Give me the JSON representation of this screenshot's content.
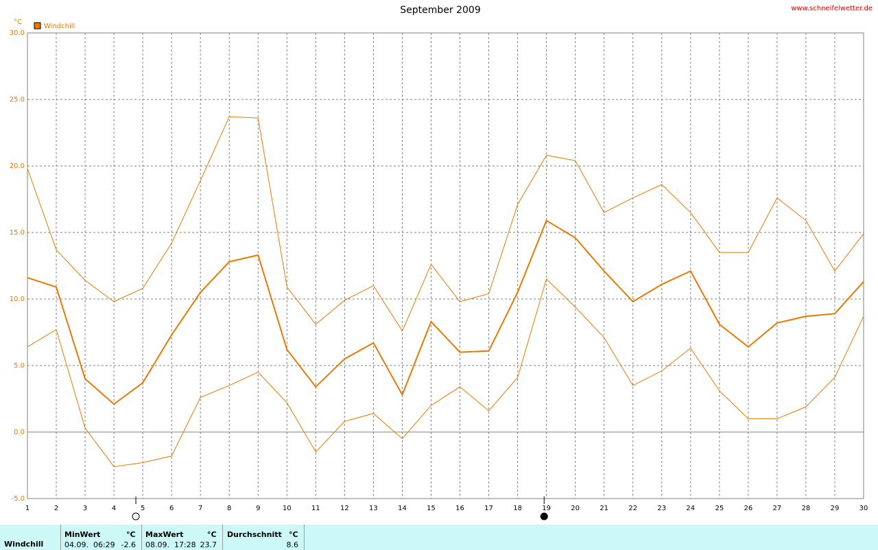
{
  "chart_data": {
    "type": "line",
    "title": "September 2009",
    "source": "www.schneifelwetter.de",
    "unit": "°C",
    "legend": "Windchill",
    "legend_color": "#e87800",
    "x": [
      1,
      2,
      3,
      4,
      5,
      6,
      7,
      8,
      9,
      10,
      11,
      12,
      13,
      14,
      15,
      16,
      17,
      18,
      19,
      20,
      21,
      22,
      23,
      24,
      25,
      26,
      27,
      28,
      29,
      30
    ],
    "xlim": [
      1,
      30
    ],
    "xticks": [
      1,
      2,
      3,
      4,
      5,
      6,
      7,
      8,
      9,
      10,
      11,
      12,
      13,
      14,
      15,
      16,
      17,
      18,
      19,
      20,
      21,
      22,
      23,
      24,
      25,
      26,
      27,
      28,
      29,
      30
    ],
    "ylim": [
      -5,
      30
    ],
    "yticks": [
      {
        "value": -5,
        "label": "-5.0"
      },
      {
        "value": 0,
        "label": "0.0"
      },
      {
        "value": 5,
        "label": "5.0"
      },
      {
        "value": 10,
        "label": "10.0"
      },
      {
        "value": 15,
        "label": "15.0"
      },
      {
        "value": 20,
        "label": "20.0"
      },
      {
        "value": 25,
        "label": "25.0"
      },
      {
        "value": 30,
        "label": "30.0"
      }
    ],
    "grid": true,
    "series": [
      {
        "name": "Windchill",
        "color": "#e87800",
        "values": [
          11.6,
          10.9,
          4.0,
          2.1,
          3.7,
          7.3,
          10.5,
          12.8,
          13.3,
          6.2,
          3.4,
          5.5,
          6.7,
          2.8,
          8.3,
          6.0,
          6.1,
          10.5,
          15.9,
          14.6,
          12.1,
          9.8,
          11.1,
          12.1,
          8.1,
          6.4,
          8.2,
          8.7,
          8.9,
          11.3
        ]
      },
      {
        "color": "#e87800",
        "values": [
          19.8,
          13.7,
          11.4,
          9.8,
          10.8,
          14.2,
          18.9,
          23.7,
          23.6,
          10.9,
          8.1,
          9.9,
          11.0,
          7.6,
          12.6,
          9.8,
          10.4,
          17.1,
          20.8,
          20.4,
          16.5,
          17.6,
          18.6,
          16.5,
          13.5,
          13.5,
          17.6,
          15.9,
          12.1,
          14.9
        ]
      },
      {
        "color": "#e87800",
        "values": [
          6.4,
          7.7,
          0.3,
          -2.6,
          -2.3,
          -1.8,
          2.6,
          3.5,
          4.5,
          2.2,
          -1.5,
          0.8,
          1.4,
          -0.5,
          2.0,
          3.4,
          1.6,
          4.1,
          11.5,
          9.4,
          7.1,
          3.5,
          4.6,
          6.3,
          3.1,
          1.0,
          1.0,
          1.9,
          4.1,
          8.7
        ]
      }
    ],
    "moon_phases": [
      {
        "x": 4.76,
        "filled": false
      },
      {
        "x": 18.92,
        "filled": true
      }
    ]
  },
  "stats": {
    "row_label": "Windchill",
    "columns": [
      {
        "header": "MinWert",
        "unit": "°C",
        "time": "04.09.  06:29",
        "value": -2.6
      },
      {
        "header": "MaxWert",
        "unit": "°C",
        "time": "08.09.  17:28",
        "value": 23.7
      },
      {
        "header": "Durchschnitt",
        "unit": "°C",
        "time": "",
        "value": 8.6
      }
    ]
  }
}
